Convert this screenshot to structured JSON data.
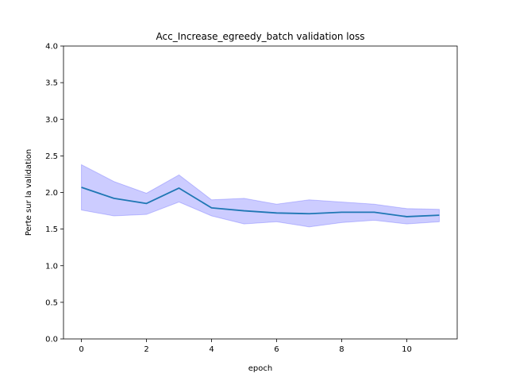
{
  "chart_data": {
    "type": "line",
    "title": "Acc_Increase_egreedy_batch validation loss",
    "xlabel": "epoch",
    "ylabel": "Perte sur la validation",
    "xlim": [
      -0.55,
      11.55
    ],
    "ylim": [
      0.0,
      4.0
    ],
    "xticks": [
      0,
      2,
      4,
      6,
      8,
      10
    ],
    "xtick_labels": [
      "0",
      "2",
      "4",
      "6",
      "8",
      "10"
    ],
    "yticks": [
      0.0,
      0.5,
      1.0,
      1.5,
      2.0,
      2.5,
      3.0,
      3.5,
      4.0
    ],
    "ytick_labels": [
      "0.0",
      "0.5",
      "1.0",
      "1.5",
      "2.0",
      "2.5",
      "3.0",
      "3.5",
      "4.0"
    ],
    "grid": false,
    "line_color": "#1f77b4",
    "band_color": "#0000ff",
    "series": [
      {
        "x": [
          0,
          1,
          2,
          3,
          4,
          5,
          6,
          7,
          8,
          9,
          10,
          11
        ],
        "values": [
          2.07,
          1.92,
          1.85,
          2.06,
          1.79,
          1.75,
          1.72,
          1.71,
          1.73,
          1.73,
          1.67,
          1.69
        ],
        "upper": [
          2.38,
          2.15,
          1.99,
          2.24,
          1.9,
          1.92,
          1.84,
          1.9,
          1.87,
          1.84,
          1.78,
          1.77
        ],
        "lower": [
          1.76,
          1.68,
          1.7,
          1.87,
          1.68,
          1.57,
          1.6,
          1.53,
          1.59,
          1.62,
          1.57,
          1.6
        ]
      }
    ]
  }
}
